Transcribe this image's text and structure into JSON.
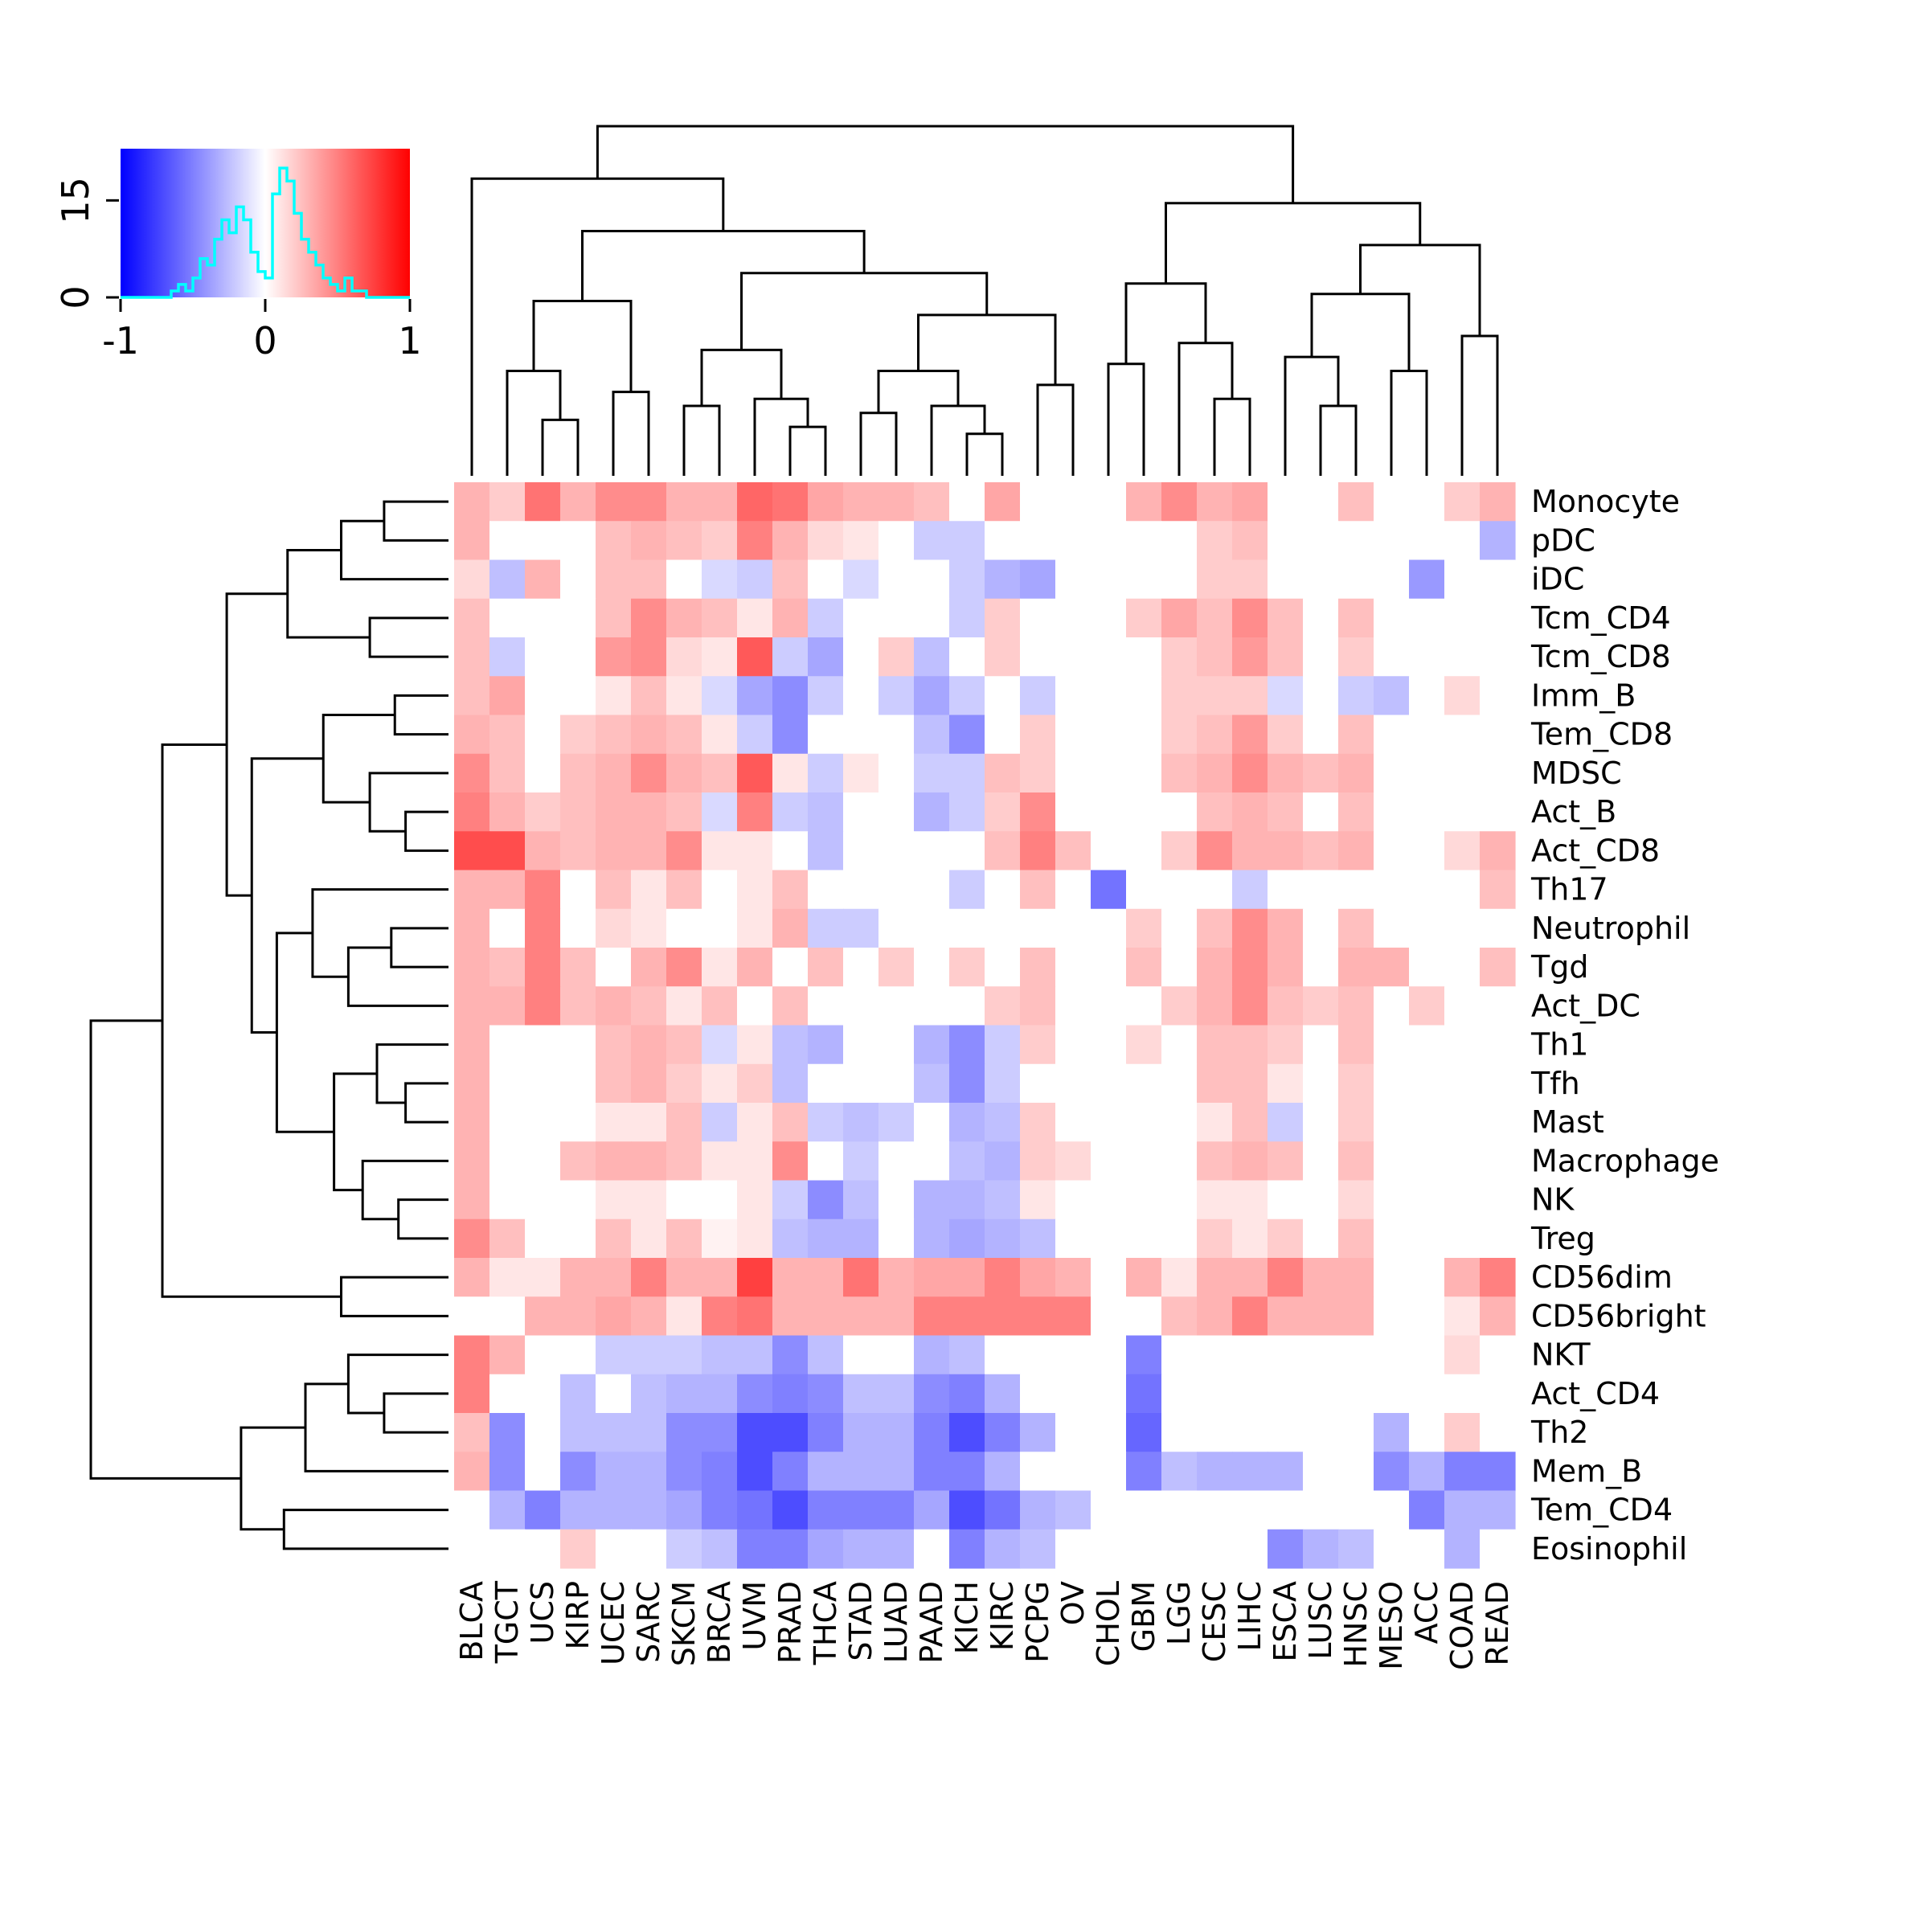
{
  "figure": {
    "background": "#FFFFFF",
    "colors": {
      "low": "#0000FF",
      "mid": "#FFFFFF",
      "high": "#FF0000",
      "histogram_trace": "#00FFFF",
      "dendrogram": "#000000",
      "text": "#000000"
    }
  },
  "color_key": {
    "x_tick_labels": [
      "-1",
      "0",
      "1"
    ],
    "x_tick_values": [
      -1,
      0,
      1
    ],
    "y_tick_labels": [
      "0",
      "15"
    ],
    "y_tick_values": [
      0,
      15
    ],
    "y_max": 23,
    "x_range": [
      -1,
      1
    ],
    "histogram_bin_start": -1,
    "histogram_bin_width": 0.05,
    "histogram_counts": [
      0,
      0,
      0,
      0,
      0,
      0,
      0,
      1,
      2,
      1,
      3,
      6,
      5,
      9,
      12,
      10,
      14,
      12,
      7,
      4,
      3,
      16,
      20,
      18,
      13,
      9,
      7,
      5,
      3,
      2,
      1,
      3,
      1,
      1,
      0,
      0,
      0,
      0,
      0,
      0
    ]
  },
  "chart_data": {
    "type": "heatmap",
    "title": "",
    "value_range": [
      -1,
      1
    ],
    "columns": [
      "BLCA",
      "TGCT",
      "UCS",
      "KIRP",
      "UCEC",
      "SARC",
      "SKCM",
      "BRCA",
      "UVM",
      "PRAD",
      "THCA",
      "STAD",
      "LUAD",
      "PAAD",
      "KICH",
      "KIRC",
      "PCPG",
      "OV",
      "CHOL",
      "GBM",
      "LGG",
      "CESC",
      "LIHC",
      "ESCA",
      "LUSC",
      "HNSC",
      "MESO",
      "ACC",
      "COAD",
      "READ"
    ],
    "rows": [
      "Monocyte",
      "pDC",
      "iDC",
      "Tcm_CD4",
      "Tcm_CD8",
      "Imm_B",
      "Tem_CD8",
      "MDSC",
      "Act_B",
      "Act_CD8",
      "Th17",
      "Neutrophil",
      "Tgd",
      "Act_DC",
      "Th1",
      "Tfh",
      "Mast",
      "Macrophage",
      "NK",
      "Treg",
      "CD56dim",
      "CD56bright",
      "NKT",
      "Act_CD4",
      "Th2",
      "Mem_B",
      "Tem_CD4",
      "Eosinophil"
    ],
    "values": [
      [
        0.3,
        0.2,
        0.55,
        0.3,
        0.45,
        0.45,
        0.3,
        0.3,
        0.6,
        0.55,
        0.35,
        0.3,
        0.3,
        0.25,
        0.0,
        0.35,
        0.0,
        0.0,
        0.0,
        0.3,
        0.45,
        0.3,
        0.35,
        0.0,
        0.0,
        0.25,
        0.0,
        0.0,
        0.2,
        0.3
      ],
      [
        0.3,
        0.0,
        0.0,
        0.0,
        0.25,
        0.3,
        0.25,
        0.2,
        0.5,
        0.3,
        0.15,
        0.1,
        0.0,
        -0.2,
        -0.2,
        0.0,
        0.0,
        0.0,
        0.0,
        0.0,
        0.0,
        0.2,
        0.25,
        0.0,
        0.0,
        0.0,
        0.0,
        0.0,
        0.0,
        -0.3
      ],
      [
        0.15,
        -0.25,
        0.3,
        0.0,
        0.25,
        0.25,
        0.0,
        -0.15,
        -0.2,
        0.25,
        0.0,
        -0.15,
        0.0,
        0.0,
        -0.2,
        -0.3,
        -0.35,
        0.0,
        0.0,
        0.0,
        0.0,
        0.2,
        0.2,
        0.0,
        0.0,
        0.0,
        0.0,
        -0.4,
        0.0,
        0.0
      ],
      [
        0.25,
        0.0,
        0.0,
        0.0,
        0.25,
        0.45,
        0.3,
        0.25,
        0.1,
        0.3,
        -0.2,
        0.0,
        0.0,
        0.0,
        -0.2,
        0.2,
        0.0,
        0.0,
        0.0,
        0.2,
        0.35,
        0.25,
        0.45,
        0.25,
        0.0,
        0.25,
        0.0,
        0.0,
        0.0,
        0.0
      ],
      [
        0.25,
        -0.2,
        0.0,
        0.0,
        0.4,
        0.45,
        0.15,
        0.1,
        0.65,
        -0.2,
        -0.35,
        0.0,
        0.2,
        -0.25,
        0.0,
        0.2,
        0.0,
        0.0,
        0.0,
        0.0,
        0.2,
        0.25,
        0.4,
        0.25,
        0.0,
        0.2,
        0.0,
        0.0,
        0.0,
        0.0
      ],
      [
        0.25,
        0.35,
        0.0,
        0.0,
        0.1,
        0.25,
        0.1,
        -0.15,
        -0.35,
        -0.45,
        -0.2,
        0.0,
        -0.2,
        -0.35,
        -0.2,
        0.0,
        -0.2,
        0.0,
        0.0,
        0.0,
        0.2,
        0.2,
        0.2,
        -0.15,
        0.0,
        -0.2,
        -0.25,
        0.0,
        0.15,
        0.0
      ],
      [
        0.3,
        0.25,
        0.0,
        0.2,
        0.25,
        0.3,
        0.25,
        0.1,
        -0.2,
        -0.45,
        0.0,
        0.0,
        0.0,
        -0.25,
        -0.45,
        0.0,
        0.2,
        0.0,
        0.0,
        0.0,
        0.2,
        0.25,
        0.4,
        0.2,
        0.0,
        0.25,
        0.0,
        0.0,
        0.0,
        0.0
      ],
      [
        0.45,
        0.25,
        0.0,
        0.25,
        0.3,
        0.45,
        0.3,
        0.25,
        0.65,
        0.1,
        -0.2,
        0.1,
        0.0,
        -0.2,
        -0.2,
        0.25,
        0.2,
        0.0,
        0.0,
        0.0,
        0.25,
        0.3,
        0.45,
        0.3,
        0.25,
        0.3,
        0.0,
        0.0,
        0.0,
        0.0
      ],
      [
        0.5,
        0.3,
        0.2,
        0.25,
        0.3,
        0.3,
        0.25,
        -0.15,
        0.5,
        -0.2,
        -0.25,
        0.0,
        0.0,
        -0.3,
        -0.2,
        0.2,
        0.45,
        0.0,
        0.0,
        0.0,
        0.0,
        0.25,
        0.3,
        0.25,
        0.0,
        0.25,
        0.0,
        0.0,
        0.0,
        0.0
      ],
      [
        0.7,
        0.7,
        0.3,
        0.25,
        0.3,
        0.3,
        0.45,
        0.1,
        0.1,
        0.0,
        -0.25,
        0.0,
        0.0,
        0.0,
        0.0,
        0.25,
        0.5,
        0.25,
        0.0,
        0.0,
        0.2,
        0.45,
        0.3,
        0.3,
        0.25,
        0.3,
        0.0,
        0.0,
        0.15,
        0.3
      ],
      [
        0.3,
        0.3,
        0.5,
        0.0,
        0.25,
        0.1,
        0.25,
        0.0,
        0.1,
        0.25,
        0.0,
        0.0,
        0.0,
        0.0,
        -0.2,
        0.0,
        0.25,
        0.0,
        -0.55,
        0.0,
        0.0,
        0.0,
        -0.2,
        0.0,
        0.0,
        0.0,
        0.0,
        0.0,
        0.0,
        0.25
      ],
      [
        0.3,
        0.0,
        0.5,
        0.0,
        0.15,
        0.1,
        0.0,
        0.0,
        0.1,
        0.3,
        -0.2,
        -0.2,
        0.0,
        0.0,
        0.0,
        0.0,
        0.0,
        0.0,
        0.0,
        0.2,
        0.0,
        0.25,
        0.45,
        0.3,
        0.0,
        0.25,
        0.0,
        0.0,
        0.0,
        0.0
      ],
      [
        0.3,
        0.25,
        0.5,
        0.25,
        0.0,
        0.3,
        0.45,
        0.1,
        0.3,
        0.0,
        0.25,
        0.0,
        0.2,
        0.0,
        0.2,
        0.0,
        0.25,
        0.0,
        0.0,
        0.25,
        0.0,
        0.3,
        0.45,
        0.3,
        0.0,
        0.3,
        0.3,
        0.0,
        0.0,
        0.25
      ],
      [
        0.3,
        0.3,
        0.5,
        0.25,
        0.3,
        0.25,
        0.1,
        0.25,
        0.0,
        0.25,
        0.0,
        0.0,
        0.0,
        0.0,
        0.0,
        0.2,
        0.25,
        0.0,
        0.0,
        0.0,
        0.2,
        0.3,
        0.45,
        0.25,
        0.2,
        0.25,
        0.0,
        0.2,
        0.0,
        0.0
      ],
      [
        0.3,
        0.0,
        0.0,
        0.0,
        0.25,
        0.3,
        0.25,
        -0.15,
        0.1,
        -0.25,
        -0.3,
        0.0,
        0.0,
        -0.3,
        -0.45,
        -0.2,
        0.2,
        0.0,
        0.0,
        0.15,
        0.0,
        0.25,
        0.25,
        0.2,
        0.0,
        0.25,
        0.0,
        0.0,
        0.0,
        0.0
      ],
      [
        0.3,
        0.0,
        0.0,
        0.0,
        0.25,
        0.3,
        0.2,
        0.1,
        0.2,
        -0.25,
        0.0,
        0.0,
        0.0,
        -0.25,
        -0.45,
        -0.2,
        0.0,
        0.0,
        0.0,
        0.0,
        0.0,
        0.25,
        0.25,
        0.1,
        0.0,
        0.2,
        0.0,
        0.0,
        0.0,
        0.0
      ],
      [
        0.3,
        0.0,
        0.0,
        0.0,
        0.1,
        0.1,
        0.25,
        -0.2,
        0.1,
        0.25,
        -0.2,
        -0.25,
        -0.2,
        0.0,
        -0.3,
        -0.25,
        0.2,
        0.0,
        0.0,
        0.0,
        0.0,
        0.1,
        0.25,
        -0.2,
        0.0,
        0.2,
        0.0,
        0.0,
        0.0,
        0.0
      ],
      [
        0.3,
        0.0,
        0.0,
        0.25,
        0.3,
        0.3,
        0.25,
        0.1,
        0.1,
        0.45,
        0.0,
        -0.2,
        0.0,
        0.0,
        -0.25,
        -0.3,
        0.2,
        0.15,
        0.0,
        0.0,
        0.0,
        0.25,
        0.3,
        0.25,
        0.0,
        0.25,
        0.0,
        0.0,
        0.0,
        0.0
      ],
      [
        0.3,
        0.0,
        0.0,
        0.0,
        0.1,
        0.1,
        0.0,
        0.0,
        0.1,
        -0.2,
        -0.45,
        -0.25,
        0.0,
        -0.3,
        -0.3,
        -0.25,
        0.1,
        0.0,
        0.0,
        0.0,
        0.0,
        0.1,
        0.1,
        0.0,
        0.0,
        0.15,
        0.0,
        0.0,
        0.0,
        0.0
      ],
      [
        0.45,
        0.25,
        0.0,
        0.0,
        0.25,
        0.1,
        0.25,
        0.05,
        0.1,
        -0.25,
        -0.3,
        -0.3,
        0.0,
        -0.3,
        -0.35,
        -0.3,
        -0.25,
        0.0,
        0.0,
        0.0,
        0.0,
        0.2,
        0.1,
        0.2,
        0.0,
        0.25,
        0.0,
        0.0,
        0.0,
        0.0
      ],
      [
        0.3,
        0.1,
        0.1,
        0.3,
        0.3,
        0.5,
        0.3,
        0.3,
        0.75,
        0.3,
        0.3,
        0.55,
        0.3,
        0.35,
        0.35,
        0.5,
        0.35,
        0.3,
        0.0,
        0.3,
        0.1,
        0.3,
        0.3,
        0.5,
        0.3,
        0.3,
        0.0,
        0.0,
        0.3,
        0.5
      ],
      [
        0.0,
        0.0,
        0.3,
        0.3,
        0.35,
        0.3,
        0.1,
        0.5,
        0.55,
        0.3,
        0.3,
        0.3,
        0.3,
        0.5,
        0.5,
        0.5,
        0.5,
        0.5,
        0.0,
        0.0,
        0.25,
        0.3,
        0.5,
        0.3,
        0.3,
        0.3,
        0.0,
        0.0,
        0.1,
        0.3
      ],
      [
        0.5,
        0.3,
        0.0,
        0.0,
        -0.2,
        -0.2,
        -0.2,
        -0.25,
        -0.25,
        -0.45,
        -0.25,
        0.0,
        0.0,
        -0.3,
        -0.25,
        0.0,
        0.0,
        0.0,
        0.0,
        -0.5,
        0.0,
        0.0,
        0.0,
        0.0,
        0.0,
        0.0,
        0.0,
        0.0,
        0.15,
        0.0
      ],
      [
        0.5,
        0.0,
        0.0,
        -0.25,
        0.0,
        -0.25,
        -0.3,
        -0.3,
        -0.45,
        -0.5,
        -0.45,
        -0.25,
        -0.25,
        -0.45,
        -0.5,
        -0.3,
        0.0,
        0.0,
        0.0,
        -0.55,
        0.0,
        0.0,
        0.0,
        0.0,
        0.0,
        0.0,
        0.0,
        0.0,
        0.0,
        0.0
      ],
      [
        0.25,
        -0.45,
        0.0,
        -0.25,
        -0.25,
        -0.25,
        -0.45,
        -0.45,
        -0.7,
        -0.7,
        -0.5,
        -0.3,
        -0.3,
        -0.5,
        -0.7,
        -0.5,
        -0.3,
        0.0,
        0.0,
        -0.6,
        0.0,
        0.0,
        0.0,
        0.0,
        0.0,
        0.0,
        -0.3,
        0.0,
        0.2,
        0.0
      ],
      [
        0.3,
        -0.45,
        0.0,
        -0.45,
        -0.3,
        -0.3,
        -0.45,
        -0.5,
        -0.7,
        -0.5,
        -0.3,
        -0.3,
        -0.3,
        -0.5,
        -0.5,
        -0.3,
        0.0,
        0.0,
        0.0,
        -0.5,
        -0.25,
        -0.3,
        -0.3,
        -0.3,
        0.0,
        0.0,
        -0.45,
        -0.3,
        -0.5,
        -0.5
      ],
      [
        0.0,
        -0.3,
        -0.5,
        -0.3,
        -0.3,
        -0.3,
        -0.35,
        -0.5,
        -0.55,
        -0.7,
        -0.5,
        -0.5,
        -0.5,
        -0.35,
        -0.7,
        -0.55,
        -0.3,
        -0.25,
        0.0,
        0.0,
        0.0,
        0.0,
        0.0,
        0.0,
        0.0,
        0.0,
        0.0,
        -0.5,
        -0.3,
        -0.3
      ],
      [
        0.0,
        0.0,
        0.0,
        0.2,
        0.0,
        0.0,
        -0.2,
        -0.25,
        -0.5,
        -0.5,
        -0.35,
        -0.3,
        -0.3,
        0.0,
        -0.5,
        -0.3,
        -0.25,
        0.0,
        0.0,
        0.0,
        0.0,
        0.0,
        0.0,
        -0.45,
        -0.3,
        -0.25,
        0.0,
        0.0,
        -0.3,
        0.0
      ]
    ],
    "col_dendrogram": [
      1.0,
      [
        0.85,
        "BLCA",
        [
          0.7,
          [
            0.5,
            [
              0.3,
              "TGCT",
              [
                0.16,
                "UCS",
                "KIRP"
              ]
            ],
            [
              0.24,
              "UCEC",
              "SARC"
            ]
          ],
          [
            0.58,
            [
              0.36,
              [
                0.2,
                "SKCM",
                "BRCA"
              ],
              [
                0.22,
                "UVM",
                [
                  0.14,
                  "PRAD",
                  "THCA"
                ]
              ]
            ],
            [
              0.46,
              [
                0.3,
                [
                  0.18,
                  "STAD",
                  "LUAD"
                ],
                [
                  0.2,
                  "PAAD",
                  [
                    0.12,
                    "KICH",
                    "KIRC"
                  ]
                ]
              ],
              [
                0.26,
                "PCPG",
                "OV"
              ]
            ]
          ]
        ]
      ],
      [
        0.78,
        [
          0.55,
          [
            0.32,
            "CHOL",
            "GBM"
          ],
          [
            0.38,
            "LGG",
            [
              0.22,
              "CESC",
              "LIHC"
            ]
          ]
        ],
        [
          0.66,
          [
            0.52,
            [
              0.34,
              "ESCA",
              [
                0.2,
                "LUSC",
                "HNSC"
              ]
            ],
            [
              0.3,
              "MESO",
              "ACC"
            ]
          ],
          [
            0.4,
            "COAD",
            "READ"
          ]
        ]
      ]
    ],
    "row_dendrogram": [
      1.0,
      [
        0.8,
        [
          0.62,
          [
            0.45,
            [
              0.3,
              [
                0.18,
                "Monocyte",
                "pDC"
              ],
              "iDC"
            ],
            [
              0.22,
              "Tcm_CD4",
              "Tcm_CD8"
            ]
          ],
          [
            0.55,
            [
              0.35,
              [
                0.15,
                "Imm_B",
                "Tem_CD8"
              ],
              [
                0.22,
                "MDSC",
                [
                  0.12,
                  "Act_B",
                  "Act_CD8"
                ]
              ]
            ],
            [
              0.48,
              [
                0.38,
                "Th17",
                [
                  0.28,
                  [
                    0.16,
                    "Neutrophil",
                    "Tgd"
                  ],
                  "Act_DC"
                ]
              ],
              [
                0.32,
                [
                  0.2,
                  "Th1",
                  [
                    0.12,
                    "Tfh",
                    "Mast"
                  ]
                ],
                [
                  0.24,
                  "Macrophage",
                  [
                    0.14,
                    "NK",
                    "Treg"
                  ]
                ]
              ]
            ]
          ]
        ],
        [
          0.3,
          "CD56dim",
          "CD56bright"
        ]
      ],
      [
        0.58,
        [
          0.4,
          [
            0.28,
            "NKT",
            [
              0.18,
              "Act_CD4",
              "Th2"
            ]
          ],
          "Mem_B"
        ],
        [
          0.46,
          "Tem_CD4",
          "Eosinophil"
        ]
      ]
    ]
  }
}
